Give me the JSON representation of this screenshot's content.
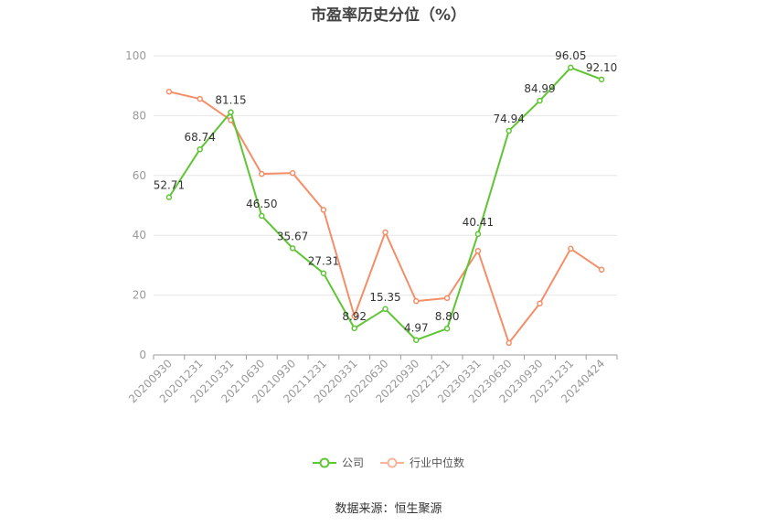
{
  "chart_data": {
    "type": "line",
    "title": "市盈率历史分位（%）",
    "categories": [
      "20200930",
      "20201231",
      "20210331",
      "20210630",
      "20210930",
      "20211231",
      "20220331",
      "20220630",
      "20220930",
      "20221231",
      "20230331",
      "20230630",
      "20230930",
      "20231231",
      "20240424"
    ],
    "ylim": [
      0,
      100
    ],
    "yticks": [
      0,
      20,
      40,
      60,
      80,
      100
    ],
    "grid": true,
    "legend_position": "bottom",
    "series": [
      {
        "name": "公司",
        "color": "#5ec534",
        "values": [
          52.71,
          68.74,
          81.15,
          46.5,
          35.67,
          27.31,
          8.92,
          15.35,
          4.97,
          8.8,
          40.41,
          74.94,
          84.99,
          96.05,
          92.1
        ],
        "labels": [
          "52.71",
          "68.74",
          "81.15",
          "46.50",
          "35.67",
          "27.31",
          "8.92",
          "15.35",
          "4.97",
          "8.80",
          "40.41",
          "74.94",
          "84.99",
          "96.05",
          "92.10"
        ]
      },
      {
        "name": "行业中位数",
        "color": "#f48e68",
        "values": [
          88,
          85.6,
          78.5,
          60.5,
          60.8,
          48.5,
          13,
          41,
          18,
          19,
          34.8,
          4,
          17.2,
          35.5,
          28.5
        ]
      }
    ]
  },
  "source_text": "数据来源：恒生聚源"
}
